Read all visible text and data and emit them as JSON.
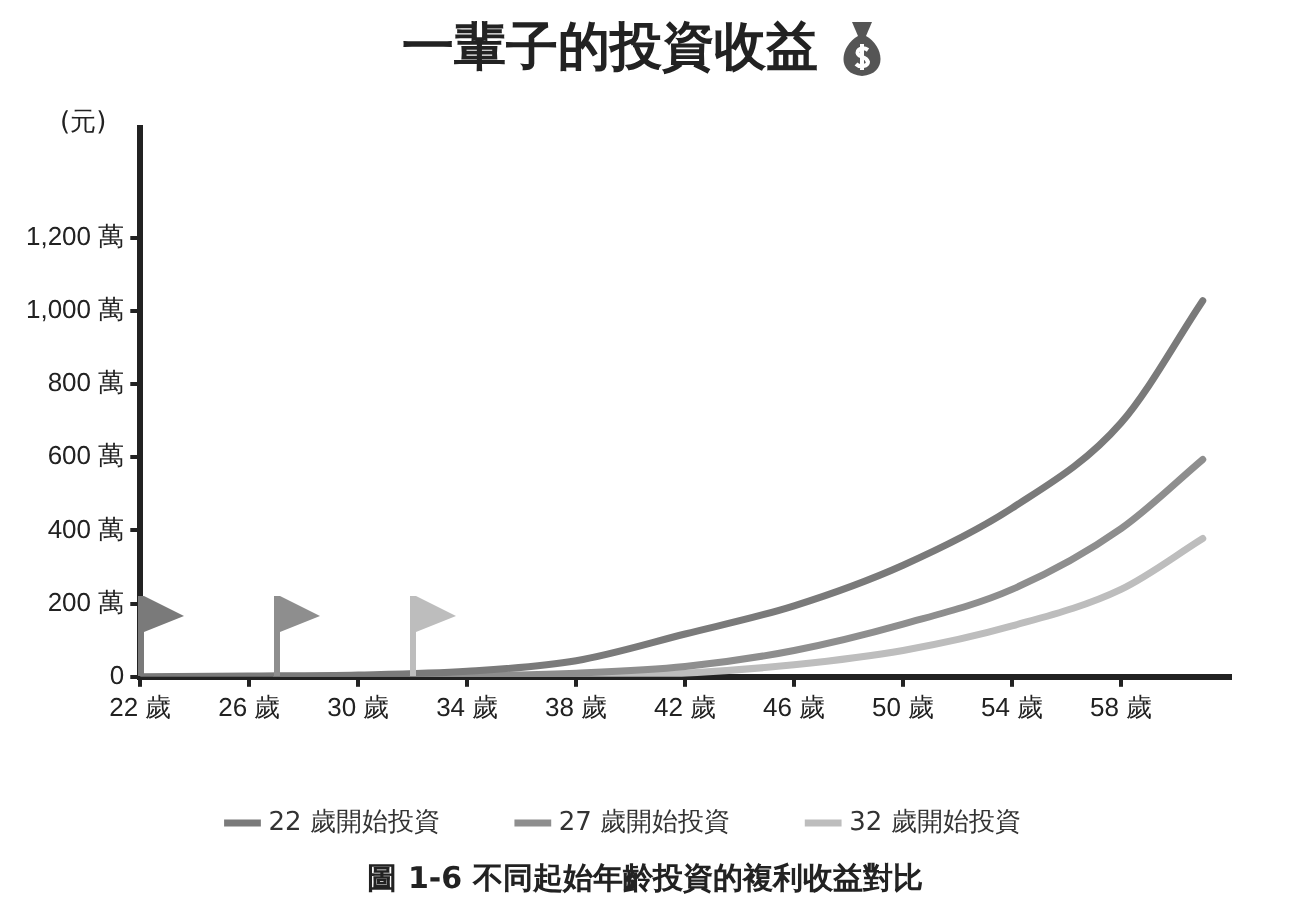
{
  "chart_data": {
    "type": "line",
    "title": "一輩子的投資收益",
    "ylabel": "(元)",
    "x": [
      22,
      26,
      30,
      34,
      38,
      42,
      46,
      50,
      54,
      58,
      61
    ],
    "series": [
      {
        "name": "22 歲開始投資",
        "color": "#7a7a7a",
        "values": [
          0,
          2,
          5,
          15,
          44,
          117,
          194,
          305,
          461,
          694,
          1028
        ]
      },
      {
        "name": "27 歲開始投資",
        "color": "#8e8e8e",
        "x": [
          27,
          30,
          34,
          38,
          42,
          46,
          50,
          54,
          58,
          61
        ],
        "values": [
          0,
          1,
          3,
          10,
          28,
          72,
          144,
          239,
          405,
          594
        ]
      },
      {
        "name": "32 歲開始投資",
        "color": "#bdbdbd",
        "x": [
          32,
          34,
          38,
          42,
          46,
          50,
          54,
          58,
          61
        ],
        "values": [
          0,
          1,
          3,
          10,
          33,
          72,
          139,
          239,
          378
        ]
      }
    ],
    "xlim": [
      22,
      62
    ],
    "xticks": [
      {
        "value": 22,
        "label": "22 歲"
      },
      {
        "value": 26,
        "label": "26 歲"
      },
      {
        "value": 30,
        "label": "30 歲"
      },
      {
        "value": 34,
        "label": "34 歲"
      },
      {
        "value": 38,
        "label": "38 歲"
      },
      {
        "value": 42,
        "label": "42 歲"
      },
      {
        "value": 46,
        "label": "46 歲"
      },
      {
        "value": 50,
        "label": "50 歲"
      },
      {
        "value": 54,
        "label": "54 歲"
      },
      {
        "value": 58,
        "label": "58 歲"
      }
    ],
    "ylim": [
      0,
      1500
    ],
    "yticks": [
      0,
      {
        "value": 200,
        "label": "200 萬"
      },
      {
        "value": 400,
        "label": "400 萬"
      },
      {
        "value": 600,
        "label": "600 萬"
      },
      {
        "value": 800,
        "label": "800 萬"
      },
      {
        "value": 1000,
        "label": "1,000 萬"
      },
      {
        "value": 1200,
        "label": "1,200 萬"
      }
    ],
    "grid": false,
    "legend": "bottom",
    "marker": "none",
    "line_style": "solid",
    "annotations": [
      "圖 1-6  不同起始年齡投資的複利收益對比"
    ]
  }
}
